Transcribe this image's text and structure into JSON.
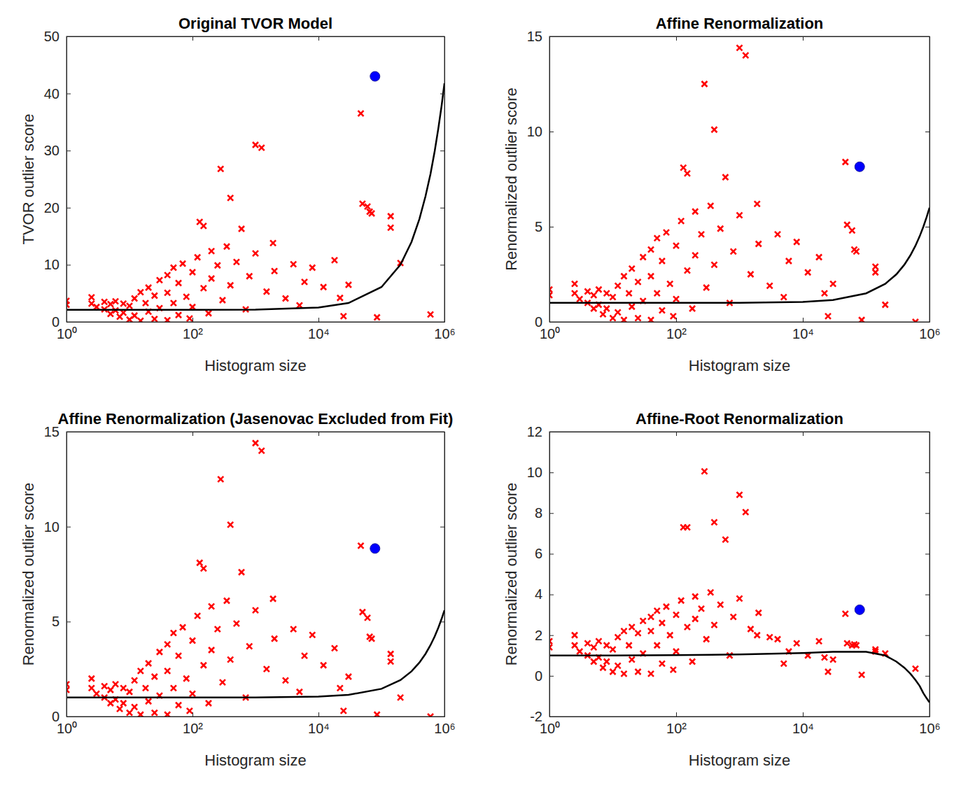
{
  "chart_data": [
    {
      "type": "scatter",
      "title": "Original TVOR Model",
      "x_label": "Histogram size",
      "y_label": "TVOR outlier score",
      "log": "x",
      "xlim": [
        1,
        1000000
      ],
      "xticks": [
        {
          "value": 1,
          "label": "10⁰"
        },
        {
          "value": 100,
          "label": "10²"
        },
        {
          "value": 10000,
          "label": "10⁴"
        },
        {
          "value": 1000000,
          "label": "10⁶"
        }
      ],
      "ylim": [
        0,
        50
      ],
      "yticks": [
        0,
        10,
        20,
        30,
        40,
        50
      ],
      "series": [
        {
          "type": "scatter",
          "color": "#ff0000",
          "marker": "x",
          "x": [
            1,
            1,
            2.5,
            2.5,
            3,
            4,
            4,
            5,
            5,
            6,
            6,
            7,
            8,
            8,
            10,
            10,
            12,
            12,
            15,
            15,
            18,
            20,
            20,
            25,
            25,
            30,
            30,
            40,
            40,
            40,
            50,
            50,
            60,
            60,
            70,
            80,
            90,
            100,
            100,
            120,
            130,
            150,
            150,
            180,
            200,
            200,
            250,
            280,
            300,
            350,
            400,
            400,
            500,
            600,
            700,
            800,
            1000,
            1000,
            1250,
            1500,
            1900,
            2000,
            3000,
            4000,
            5000,
            6000,
            8000,
            12000,
            18000,
            22000,
            25000,
            30000,
            47000,
            50000,
            60000,
            65000,
            70000,
            85000,
            140000,
            140000,
            200000,
            600000
          ],
          "values": [
            3.7,
            3.0,
            4.3,
            3.2,
            2.6,
            3.5,
            2.2,
            3.1,
            1.4,
            3.6,
            2.0,
            0.9,
            3.2,
            1.6,
            0.4,
            2.8,
            4.1,
            1.1,
            5.2,
            0.2,
            3.3,
            6.0,
            1.8,
            0.5,
            4.6,
            7.3,
            2.4,
            8.2,
            0.3,
            5.1,
            9.5,
            3.3,
            1.2,
            6.8,
            10.2,
            4.4,
            0.6,
            8.7,
            2.6,
            11.3,
            17.5,
            16.8,
            5.9,
            1.5,
            12.4,
            7.6,
            9.9,
            26.8,
            3.8,
            13.2,
            21.7,
            6.4,
            10.5,
            16.3,
            2.2,
            8.0,
            31.0,
            12.0,
            30.5,
            5.3,
            13.8,
            8.9,
            4.1,
            10.1,
            2.9,
            7.0,
            9.5,
            6.1,
            10.8,
            4.2,
            1.0,
            6.5,
            36.5,
            20.7,
            20.2,
            19.3,
            19.0,
            0.8,
            18.5,
            16.5,
            10.3,
            1.3
          ]
        },
        {
          "type": "scatter",
          "color": "#0000ff",
          "marker": "circle",
          "x": [
            79000
          ],
          "values": [
            43
          ]
        },
        {
          "type": "line",
          "color": "#000000",
          "line_style": "solid",
          "x": [
            1,
            10,
            100,
            1000,
            10000,
            30000,
            100000,
            200000,
            300000,
            400000,
            500000,
            600000,
            700000,
            800000,
            900000,
            1000000
          ],
          "values": [
            2.1,
            2.1,
            2.1,
            2.14,
            2.5,
            3.3,
            6.1,
            10.0,
            14.0,
            18.0,
            22.0,
            25.9,
            29.9,
            33.9,
            37.8,
            41.8
          ]
        }
      ]
    },
    {
      "type": "scatter",
      "title": "Affine Renormalization",
      "x_label": "Histogram size",
      "y_label": "Renormalized outlier score",
      "log": "x",
      "xlim": [
        1,
        1000000
      ],
      "xticks": [
        {
          "value": 1,
          "label": "10⁰"
        },
        {
          "value": 100,
          "label": "10²"
        },
        {
          "value": 10000,
          "label": "10⁴"
        },
        {
          "value": 1000000,
          "label": "10⁶"
        }
      ],
      "ylim": [
        0,
        15
      ],
      "yticks": [
        0,
        5,
        10,
        15
      ],
      "series": [
        {
          "type": "scatter",
          "color": "#ff0000",
          "marker": "x",
          "x": [
            1,
            1,
            2.5,
            2.5,
            3,
            4,
            4,
            5,
            5,
            6,
            6,
            7,
            8,
            8,
            10,
            10,
            12,
            12,
            15,
            15,
            18,
            20,
            20,
            25,
            25,
            30,
            30,
            40,
            40,
            40,
            50,
            50,
            60,
            60,
            70,
            80,
            90,
            100,
            100,
            120,
            130,
            150,
            150,
            180,
            200,
            200,
            250,
            280,
            300,
            350,
            400,
            400,
            500,
            600,
            700,
            800,
            1000,
            1000,
            1250,
            1500,
            1900,
            2000,
            3000,
            4000,
            5000,
            6000,
            8000,
            12000,
            18000,
            22000,
            25000,
            30000,
            47000,
            50000,
            60000,
            65000,
            70000,
            85000,
            140000,
            140000,
            200000,
            600000
          ],
          "values": [
            1.7,
            1.4,
            2.0,
            1.5,
            1.2,
            1.6,
            1.0,
            1.4,
            0.7,
            1.7,
            0.9,
            0.4,
            1.5,
            0.7,
            0.2,
            1.3,
            1.9,
            0.5,
            2.4,
            0.1,
            1.5,
            2.8,
            0.8,
            0.2,
            2.1,
            3.4,
            1.1,
            3.8,
            0.1,
            2.4,
            4.4,
            1.5,
            0.6,
            3.2,
            4.7,
            2.0,
            0.3,
            4.0,
            1.2,
            5.3,
            8.1,
            7.8,
            2.7,
            0.7,
            5.8,
            3.5,
            4.6,
            12.5,
            1.8,
            6.1,
            10.1,
            3.0,
            4.9,
            7.6,
            1.0,
            3.7,
            14.4,
            5.6,
            14.0,
            2.5,
            6.2,
            4.1,
            1.9,
            4.6,
            1.3,
            3.2,
            4.2,
            2.6,
            3.4,
            1.5,
            0.3,
            2.0,
            8.4,
            5.1,
            4.8,
            3.8,
            3.7,
            0.1,
            2.9,
            2.6,
            0.9,
            0.0
          ]
        },
        {
          "type": "scatter",
          "color": "#0000ff",
          "marker": "circle",
          "x": [
            79000
          ],
          "values": [
            8.15
          ]
        },
        {
          "type": "line",
          "color": "#000000",
          "line_style": "solid",
          "x": [
            1,
            10,
            100,
            1000,
            10000,
            30000,
            100000,
            200000,
            300000,
            400000,
            500000,
            600000,
            700000,
            800000,
            900000,
            1000000
          ],
          "values": [
            1.0,
            1.0,
            1.0,
            1.0,
            1.05,
            1.15,
            1.5,
            2.0,
            2.5,
            3.0,
            3.5,
            4.0,
            4.5,
            5.0,
            5.5,
            6.0
          ]
        }
      ]
    },
    {
      "type": "scatter",
      "title": "Affine Renormalization (Jasenovac Excluded from Fit)",
      "x_label": "Histogram size",
      "y_label": "Renormalized outlier score",
      "log": "x",
      "xlim": [
        1,
        1000000
      ],
      "xticks": [
        {
          "value": 1,
          "label": "10⁰"
        },
        {
          "value": 100,
          "label": "10²"
        },
        {
          "value": 10000,
          "label": "10⁴"
        },
        {
          "value": 1000000,
          "label": "10⁶"
        }
      ],
      "ylim": [
        0,
        15
      ],
      "yticks": [
        0,
        5,
        10,
        15
      ],
      "series": [
        {
          "type": "scatter",
          "color": "#ff0000",
          "marker": "x",
          "x": [
            1,
            1,
            2.5,
            2.5,
            3,
            4,
            4,
            5,
            5,
            6,
            6,
            7,
            8,
            8,
            10,
            10,
            12,
            12,
            15,
            15,
            18,
            20,
            20,
            25,
            25,
            30,
            30,
            40,
            40,
            40,
            50,
            50,
            60,
            60,
            70,
            80,
            90,
            100,
            100,
            120,
            130,
            150,
            150,
            180,
            200,
            200,
            250,
            280,
            300,
            350,
            400,
            400,
            500,
            600,
            700,
            800,
            1000,
            1000,
            1250,
            1500,
            1900,
            2000,
            3000,
            4000,
            5000,
            6000,
            8000,
            12000,
            18000,
            22000,
            25000,
            30000,
            47000,
            50000,
            60000,
            65000,
            70000,
            85000,
            140000,
            140000,
            200000,
            600000
          ],
          "values": [
            1.7,
            1.4,
            2.0,
            1.5,
            1.2,
            1.6,
            1.0,
            1.4,
            0.7,
            1.7,
            0.9,
            0.4,
            1.5,
            0.7,
            0.2,
            1.3,
            1.9,
            0.5,
            2.4,
            0.1,
            1.5,
            2.8,
            0.8,
            0.2,
            2.1,
            3.4,
            1.1,
            3.8,
            0.1,
            2.4,
            4.4,
            1.5,
            0.6,
            3.2,
            4.7,
            2.0,
            0.3,
            4.0,
            1.2,
            5.3,
            8.1,
            7.8,
            2.7,
            0.7,
            5.8,
            3.5,
            4.6,
            12.5,
            1.8,
            6.1,
            10.1,
            3.0,
            4.9,
            7.6,
            1.0,
            3.7,
            14.4,
            5.6,
            14.0,
            2.5,
            6.2,
            4.1,
            1.9,
            4.6,
            1.3,
            3.2,
            4.3,
            2.7,
            3.6,
            1.5,
            0.3,
            2.1,
            9.0,
            5.5,
            5.2,
            4.2,
            4.1,
            0.1,
            3.3,
            2.9,
            1.0,
            0.0
          ]
        },
        {
          "type": "scatter",
          "color": "#0000ff",
          "marker": "circle",
          "x": [
            79000
          ],
          "values": [
            8.85
          ]
        },
        {
          "type": "line",
          "color": "#000000",
          "line_style": "solid",
          "x": [
            1,
            10,
            100,
            1000,
            10000,
            30000,
            100000,
            200000,
            300000,
            400000,
            500000,
            600000,
            700000,
            800000,
            900000,
            1000000
          ],
          "values": [
            1.0,
            1.0,
            1.0,
            1.0,
            1.05,
            1.14,
            1.46,
            1.92,
            2.38,
            2.84,
            3.3,
            3.76,
            4.22,
            4.68,
            5.14,
            5.6
          ]
        }
      ]
    },
    {
      "type": "scatter",
      "title": "Affine-Root Renormalization",
      "x_label": "Histogram size",
      "y_label": "Renormalized outlier score",
      "log": "x",
      "xlim": [
        1,
        1000000
      ],
      "xticks": [
        {
          "value": 1,
          "label": "10⁰"
        },
        {
          "value": 100,
          "label": "10²"
        },
        {
          "value": 10000,
          "label": "10⁴"
        },
        {
          "value": 1000000,
          "label": "10⁶"
        }
      ],
      "ylim": [
        -2,
        12
      ],
      "yticks": [
        -2,
        0,
        2,
        4,
        6,
        8,
        10,
        12
      ],
      "series": [
        {
          "type": "scatter",
          "color": "#ff0000",
          "marker": "x",
          "x": [
            1,
            1,
            2.5,
            2.5,
            3,
            4,
            4,
            5,
            5,
            6,
            6,
            7,
            8,
            8,
            10,
            10,
            12,
            12,
            15,
            15,
            18,
            20,
            20,
            25,
            25,
            30,
            30,
            40,
            40,
            40,
            50,
            50,
            60,
            60,
            70,
            80,
            90,
            100,
            100,
            120,
            130,
            150,
            150,
            180,
            200,
            200,
            250,
            280,
            300,
            350,
            400,
            400,
            500,
            600,
            700,
            800,
            1000,
            1000,
            1250,
            1500,
            1900,
            2000,
            3000,
            4000,
            5000,
            6000,
            8000,
            12000,
            18000,
            22000,
            25000,
            30000,
            47000,
            50000,
            60000,
            65000,
            70000,
            85000,
            140000,
            140000,
            200000,
            600000
          ],
          "values": [
            1.7,
            1.4,
            2.0,
            1.5,
            1.2,
            1.6,
            1.0,
            1.4,
            0.7,
            1.7,
            0.9,
            0.4,
            1.5,
            0.7,
            0.2,
            1.3,
            1.9,
            0.5,
            2.2,
            0.1,
            1.5,
            2.4,
            0.8,
            0.2,
            2.1,
            2.7,
            1.1,
            2.9,
            0.1,
            2.2,
            3.2,
            1.5,
            0.6,
            2.6,
            3.4,
            2.0,
            0.3,
            3.0,
            1.2,
            3.7,
            7.3,
            7.3,
            2.4,
            0.7,
            3.9,
            2.8,
            3.3,
            10.05,
            1.8,
            4.1,
            7.55,
            2.5,
            3.5,
            6.7,
            1.0,
            2.9,
            8.9,
            3.8,
            8.05,
            2.3,
            2.0,
            3.1,
            1.9,
            1.8,
            0.6,
            1.2,
            1.6,
            1.0,
            1.7,
            0.9,
            0.2,
            0.8,
            3.05,
            1.6,
            1.5,
            1.55,
            1.5,
            0.05,
            1.3,
            1.2,
            1.1,
            0.35
          ]
        },
        {
          "type": "scatter",
          "color": "#0000ff",
          "marker": "circle",
          "x": [
            79000
          ],
          "values": [
            3.25
          ]
        },
        {
          "type": "line",
          "color": "#000000",
          "line_style": "solid",
          "x": [
            1,
            10,
            100,
            1000,
            10000,
            30000,
            100000,
            200000,
            300000,
            400000,
            500000,
            600000,
            700000,
            800000,
            900000,
            1000000
          ],
          "values": [
            1.0,
            1.0,
            1.02,
            1.05,
            1.12,
            1.18,
            1.18,
            1.0,
            0.7,
            0.4,
            0.1,
            -0.2,
            -0.5,
            -0.85,
            -1.1,
            -1.3
          ]
        }
      ]
    }
  ]
}
